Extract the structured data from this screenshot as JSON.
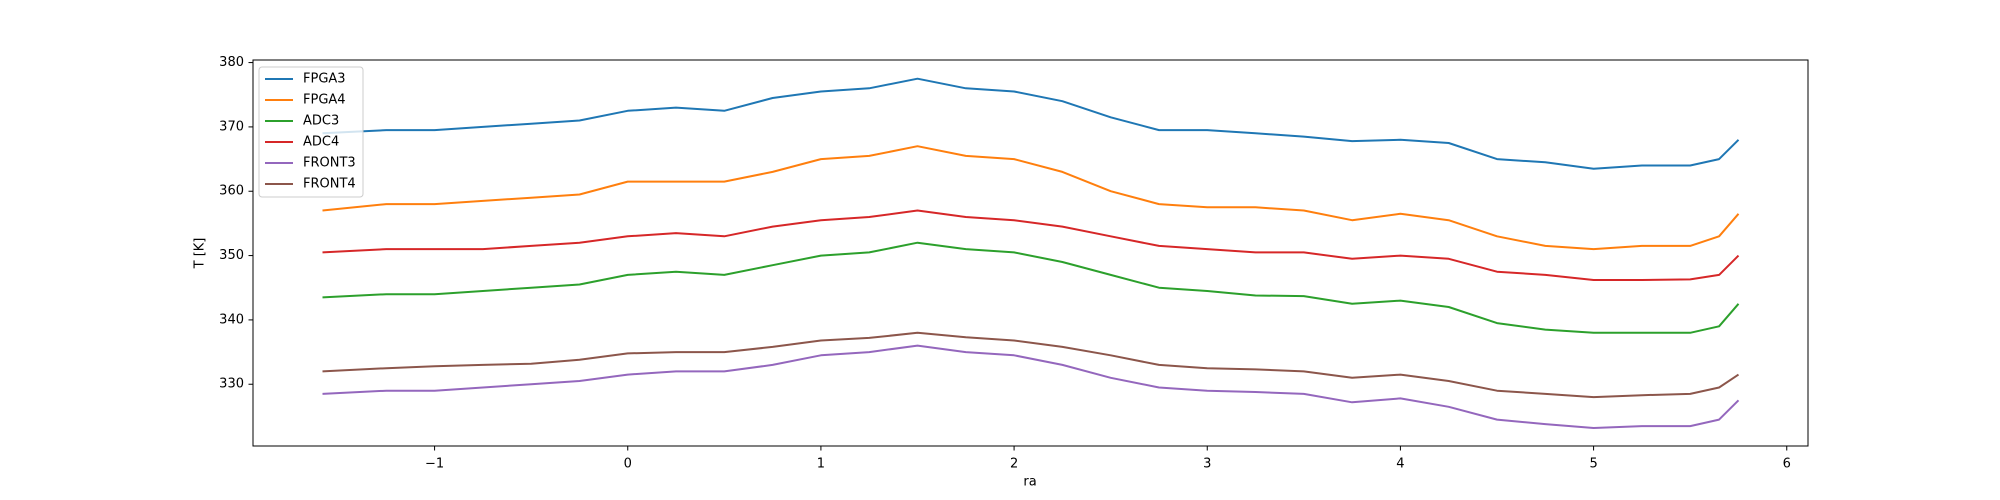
{
  "chart_data": {
    "type": "line",
    "x_label": "ra",
    "y_label": "T [K]",
    "x": [
      -1.58,
      -1.25,
      -1,
      -0.75,
      -0.5,
      -0.25,
      0,
      0.25,
      0.5,
      0.75,
      1,
      1.25,
      1.5,
      1.75,
      2,
      2.25,
      2.5,
      2.75,
      3,
      3.25,
      3.5,
      3.75,
      4,
      4.25,
      4.5,
      4.75,
      5,
      5.25,
      5.5,
      5.65,
      5.75
    ],
    "series": [
      {
        "name": "FPGA3",
        "color": "#1f77b4",
        "values": [
          369,
          369.5,
          369.5,
          370,
          370.5,
          371,
          372.5,
          373,
          372.5,
          374.5,
          375.5,
          376,
          377.5,
          376,
          375.5,
          374,
          371.5,
          369.5,
          369.5,
          369,
          368.5,
          367.8,
          368,
          367.5,
          365,
          364.5,
          363.5,
          364,
          364,
          365,
          368
        ]
      },
      {
        "name": "FPGA4",
        "color": "#ff7f0e",
        "values": [
          357,
          358,
          358,
          358.5,
          359,
          359.5,
          361.5,
          361.5,
          361.5,
          363,
          365,
          365.5,
          367,
          365.5,
          365,
          363,
          360,
          358,
          357.5,
          357.5,
          357,
          355.5,
          356.5,
          355.5,
          353,
          351.5,
          351,
          351.5,
          351.5,
          353,
          356.5
        ]
      },
      {
        "name": "ADC3",
        "color": "#2ca02c",
        "values": [
          343.5,
          344,
          344,
          344.5,
          345,
          345.5,
          347,
          347.5,
          347,
          348.5,
          350,
          350.5,
          352,
          351,
          350.5,
          349,
          347,
          345,
          344.5,
          343.8,
          343.7,
          342.5,
          343,
          342,
          339.5,
          338.5,
          338,
          338,
          338,
          339,
          342.5
        ]
      },
      {
        "name": "ADC4",
        "color": "#d62728",
        "values": [
          350.5,
          351,
          351,
          351,
          351.5,
          352,
          353,
          353.5,
          353,
          354.5,
          355.5,
          356,
          357,
          356,
          355.5,
          354.5,
          353,
          351.5,
          351,
          350.5,
          350.5,
          349.5,
          350,
          349.5,
          347.5,
          347,
          346.2,
          346.2,
          346.3,
          347,
          350
        ]
      },
      {
        "name": "FRONT3",
        "color": "#9467bd",
        "values": [
          328.5,
          329,
          329,
          329.5,
          330,
          330.5,
          331.5,
          332,
          332,
          333,
          334.5,
          335,
          336,
          335,
          334.5,
          333,
          331,
          329.5,
          329,
          328.8,
          328.5,
          327.2,
          327.8,
          326.5,
          324.5,
          323.8,
          323.2,
          323.5,
          323.5,
          324.5,
          327.5
        ]
      },
      {
        "name": "FRONT4",
        "color": "#8c564b",
        "values": [
          332,
          332.5,
          332.8,
          333,
          333.2,
          333.8,
          334.8,
          335,
          335,
          335.8,
          336.8,
          337.2,
          338,
          337.3,
          336.8,
          335.8,
          334.5,
          333,
          332.5,
          332.3,
          332,
          331,
          331.5,
          330.5,
          329,
          328.5,
          328,
          328.3,
          328.5,
          329.5,
          331.5
        ]
      }
    ],
    "xlim": [
      -1.94,
      6.11
    ],
    "xticks": [
      {
        "value": -1,
        "label": "−1"
      },
      0,
      1,
      2,
      3,
      4,
      5,
      6
    ],
    "ylim": [
      320.4,
      380.4
    ],
    "yticks": [
      330,
      340,
      350,
      360,
      370,
      380
    ],
    "legend": "upper left"
  }
}
